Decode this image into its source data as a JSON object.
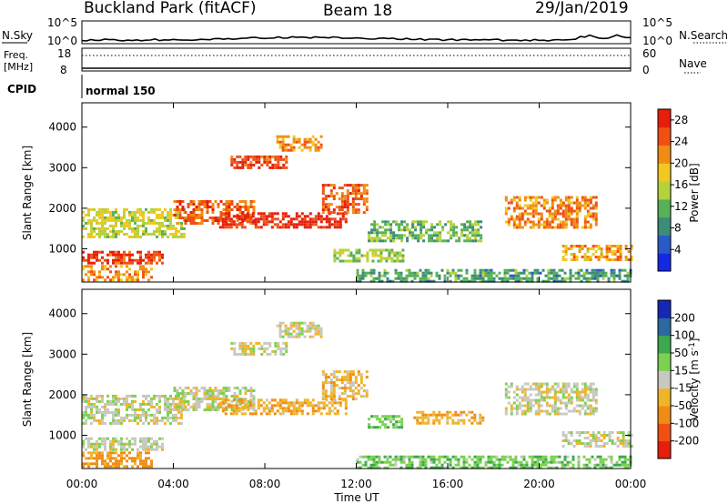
{
  "header": {
    "station": "Buckland Park (fitACF)",
    "beam": "Beam 18",
    "date": "29/Jan/2019"
  },
  "summary": {
    "nsky_label": "N.Sky",
    "nsky_top": "10^5",
    "nsky_bottom": "10^0",
    "nsearch_label": "N.Search",
    "nsearch_top": "10^5",
    "nsearch_bottom": "10^0",
    "freq_label": "Freq.",
    "freq_unit": "[MHz]",
    "freq_top": "18",
    "freq_bottom": "8",
    "nave_label": "Nave",
    "nave_top": "60",
    "nave_bottom": "0",
    "cpid_label": "CPID",
    "cpid_value": "normal 150"
  },
  "colors": {
    "power_scale": [
      "#1428e6",
      "#2a5ac8",
      "#3c8c78",
      "#58b058",
      "#b4d23c",
      "#f0c81e",
      "#f08c14",
      "#f05014",
      "#e61e0a"
    ],
    "velocity_scale": [
      "#e61e0a",
      "#f05014",
      "#f08c14",
      "#f0b428",
      "#c8c8c0",
      "#7cd250",
      "#3ca850",
      "#2a6aa0",
      "#1428b4"
    ]
  },
  "chart_data": [
    {
      "type": "heatmap",
      "name": "power-panel",
      "ylabel": "Slant Range [km]",
      "xlabel": "",
      "x_ticks": [
        "00:00",
        "04:00",
        "08:00",
        "12:00",
        "16:00",
        "20:00",
        "00:00"
      ],
      "y_ticks": [
        1000,
        2000,
        3000,
        4000
      ],
      "ylim": [
        180,
        4600
      ],
      "xlim_hours": [
        0,
        24
      ],
      "colorbar_label": "Power [dB]",
      "colorbar_ticks": [
        4,
        8,
        12,
        16,
        20,
        24,
        28
      ],
      "colorbar_range": [
        0,
        30
      ],
      "echo_regions": [
        {
          "t": [
            0.0,
            3.5
          ],
          "r": [
            650,
            950
          ],
          "level": 26
        },
        {
          "t": [
            0.0,
            3.0
          ],
          "r": [
            200,
            600
          ],
          "level": 22
        },
        {
          "t": [
            0.0,
            4.5
          ],
          "r": [
            1300,
            2000
          ],
          "level": 16
        },
        {
          "t": [
            4.0,
            7.5
          ],
          "r": [
            1600,
            2200
          ],
          "level": 24
        },
        {
          "t": [
            6.0,
            11.5
          ],
          "r": [
            1500,
            1900
          ],
          "level": 28
        },
        {
          "t": [
            6.5,
            9.0
          ],
          "r": [
            3000,
            3300
          ],
          "level": 26
        },
        {
          "t": [
            8.5,
            10.5
          ],
          "r": [
            3400,
            3800
          ],
          "level": 22
        },
        {
          "t": [
            10.5,
            12.5
          ],
          "r": [
            1900,
            2600
          ],
          "level": 24
        },
        {
          "t": [
            11.0,
            14.0
          ],
          "r": [
            700,
            1000
          ],
          "level": 14
        },
        {
          "t": [
            12.5,
            17.5
          ],
          "r": [
            1200,
            1700
          ],
          "level": 12
        },
        {
          "t": [
            18.5,
            22.5
          ],
          "r": [
            1500,
            2300
          ],
          "level": 22
        },
        {
          "t": [
            21.0,
            24.0
          ],
          "r": [
            700,
            1100
          ],
          "level": 20
        },
        {
          "t": [
            12.0,
            24.0
          ],
          "r": [
            200,
            500
          ],
          "level": 10
        }
      ]
    },
    {
      "type": "heatmap",
      "name": "velocity-panel",
      "ylabel": "Slant Range [km]",
      "xlabel": "Time UT",
      "x_ticks": [
        "00:00",
        "04:00",
        "08:00",
        "12:00",
        "16:00",
        "20:00",
        "00:00"
      ],
      "y_ticks": [
        1000,
        2000,
        3000,
        4000
      ],
      "ylim": [
        180,
        4600
      ],
      "xlim_hours": [
        0,
        24
      ],
      "colorbar_label": "Velocity [m s^-1]",
      "colorbar_ticks": [
        200,
        100,
        50,
        15,
        -15,
        -50,
        -100,
        -200
      ],
      "echo_regions": [
        {
          "t": [
            0.0,
            3.5
          ],
          "r": [
            650,
            950
          ],
          "level": 0
        },
        {
          "t": [
            0.0,
            3.0
          ],
          "r": [
            200,
            600
          ],
          "level": -60
        },
        {
          "t": [
            0.0,
            4.5
          ],
          "r": [
            1300,
            2000
          ],
          "level": 0
        },
        {
          "t": [
            4.0,
            7.5
          ],
          "r": [
            1600,
            2200
          ],
          "level": 0
        },
        {
          "t": [
            6.0,
            11.5
          ],
          "r": [
            1500,
            1900
          ],
          "level": -40
        },
        {
          "t": [
            6.5,
            9.0
          ],
          "r": [
            3000,
            3300
          ],
          "level": 0
        },
        {
          "t": [
            8.5,
            10.5
          ],
          "r": [
            3400,
            3800
          ],
          "level": 0
        },
        {
          "t": [
            10.5,
            12.5
          ],
          "r": [
            1900,
            2600
          ],
          "level": -30
        },
        {
          "t": [
            12.5,
            14.0
          ],
          "r": [
            1200,
            1500
          ],
          "level": 40
        },
        {
          "t": [
            14.5,
            17.5
          ],
          "r": [
            1300,
            1600
          ],
          "level": -40
        },
        {
          "t": [
            18.5,
            22.5
          ],
          "r": [
            1500,
            2300
          ],
          "level": 0
        },
        {
          "t": [
            21.0,
            24.0
          ],
          "r": [
            700,
            1100
          ],
          "level": 0
        },
        {
          "t": [
            12.0,
            24.0
          ],
          "r": [
            200,
            500
          ],
          "level": 40
        }
      ]
    }
  ]
}
